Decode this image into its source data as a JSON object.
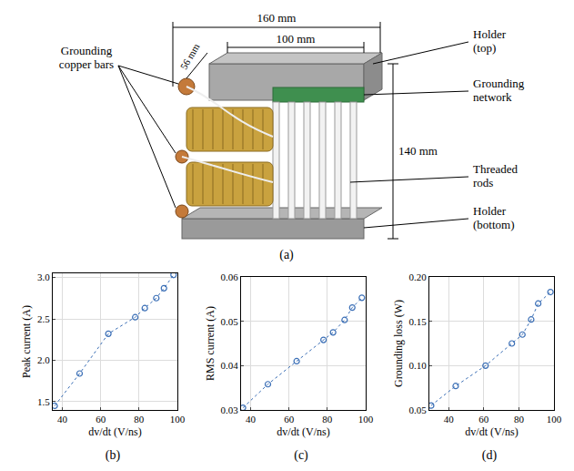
{
  "figure": {
    "panel_label": "(a)",
    "dimensions": {
      "length": "160 mm",
      "depth": "56 mm",
      "holder_length": "100 mm",
      "height": "140 mm"
    },
    "callouts_left": [
      "Grounding copper bars"
    ],
    "callouts_right": [
      "Holder (top)",
      "Grounding network",
      "Threaded rods",
      "Holder (bottom)"
    ]
  },
  "chart_data": [
    {
      "type": "line",
      "annotations": [
        "(b)"
      ],
      "x_label": "dv/dt (V/ns)",
      "y_label": "Peak current (A)",
      "x": [
        36,
        49,
        64,
        78,
        83,
        89,
        93,
        98
      ],
      "values": [
        1.45,
        1.84,
        2.32,
        2.52,
        2.63,
        2.75,
        2.87,
        3.03
      ],
      "color": "#3b6fb6",
      "marker": "circle-open",
      "line_style": "dotted",
      "xlim": [
        35,
        100
      ],
      "xticks": [
        40,
        60,
        80,
        100
      ],
      "ylim": [
        1.4,
        3.05
      ],
      "yticks": [
        1.5,
        {
          "value": 2,
          "label": "2.0"
        },
        2.5,
        {
          "value": 3,
          "label": "3.0"
        }
      ],
      "grid": true
    },
    {
      "type": "line",
      "annotations": [
        "(c)"
      ],
      "x_label": "dv/dt (V/ns)",
      "y_label": "RMS current (A)",
      "x": [
        36,
        49,
        64,
        78,
        83,
        89,
        93,
        98
      ],
      "values": [
        0.0305,
        0.0358,
        0.041,
        0.0458,
        0.0475,
        0.0503,
        0.0531,
        0.0553
      ],
      "color": "#3b6fb6",
      "marker": "circle-open",
      "line_style": "dotted",
      "xlim": [
        35,
        100
      ],
      "xticks": [
        40,
        60,
        80,
        100
      ],
      "ylim": [
        0.03,
        0.06
      ],
      "yticks": [
        0.03,
        0.04,
        0.05,
        0.06
      ],
      "grid": true
    },
    {
      "type": "line",
      "annotations": [
        "(d)"
      ],
      "x_label": "dv/dt (V/ns)",
      "y_label": "Grounding loss (W)",
      "x": [
        30,
        44,
        61,
        76,
        82,
        87,
        91,
        98
      ],
      "values": [
        0.055,
        0.077,
        0.1,
        0.125,
        0.135,
        0.152,
        0.17,
        0.183
      ],
      "color": "#3b6fb6",
      "marker": "circle-open",
      "line_style": "dotted",
      "xlim": [
        29,
        100
      ],
      "xticks": [
        40,
        60,
        80,
        100
      ],
      "ylim": [
        0.05,
        0.2
      ],
      "yticks": [
        0.05,
        {
          "value": 0.1,
          "label": "0.10"
        },
        0.15,
        {
          "value": 0.2,
          "label": "0.20"
        }
      ],
      "grid": true
    }
  ]
}
